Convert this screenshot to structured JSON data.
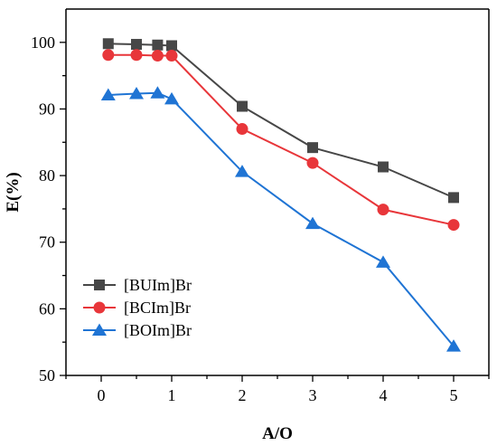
{
  "chart_data": {
    "type": "line",
    "title": "",
    "xlabel": "A/O",
    "ylabel": "E(%)",
    "x": [
      0.1,
      0.5,
      0.8,
      1,
      2,
      3,
      4,
      5
    ],
    "xticks": [
      0,
      1,
      2,
      3,
      4,
      5
    ],
    "yticks": [
      50,
      60,
      70,
      80,
      90,
      100
    ],
    "xlim": [
      -0.5,
      5.5
    ],
    "ylim": [
      50,
      105
    ],
    "grid": false,
    "legend_position": "bottom-left",
    "series": [
      {
        "name": "[BUIm]Br",
        "color": "#474747",
        "marker": "square",
        "values": [
          99.8,
          99.7,
          99.6,
          99.5,
          90.4,
          84.2,
          81.3,
          76.7
        ]
      },
      {
        "name": "[BCIm]Br",
        "color": "#e8363a",
        "marker": "circle",
        "values": [
          98.1,
          98.1,
          98.0,
          98.0,
          87.0,
          81.9,
          74.9,
          72.6
        ]
      },
      {
        "name": "[BOIm]Br",
        "color": "#1f74d4",
        "marker": "triangle",
        "values": [
          92.1,
          92.3,
          92.4,
          91.5,
          80.6,
          72.8,
          67.0,
          54.4
        ]
      }
    ]
  }
}
